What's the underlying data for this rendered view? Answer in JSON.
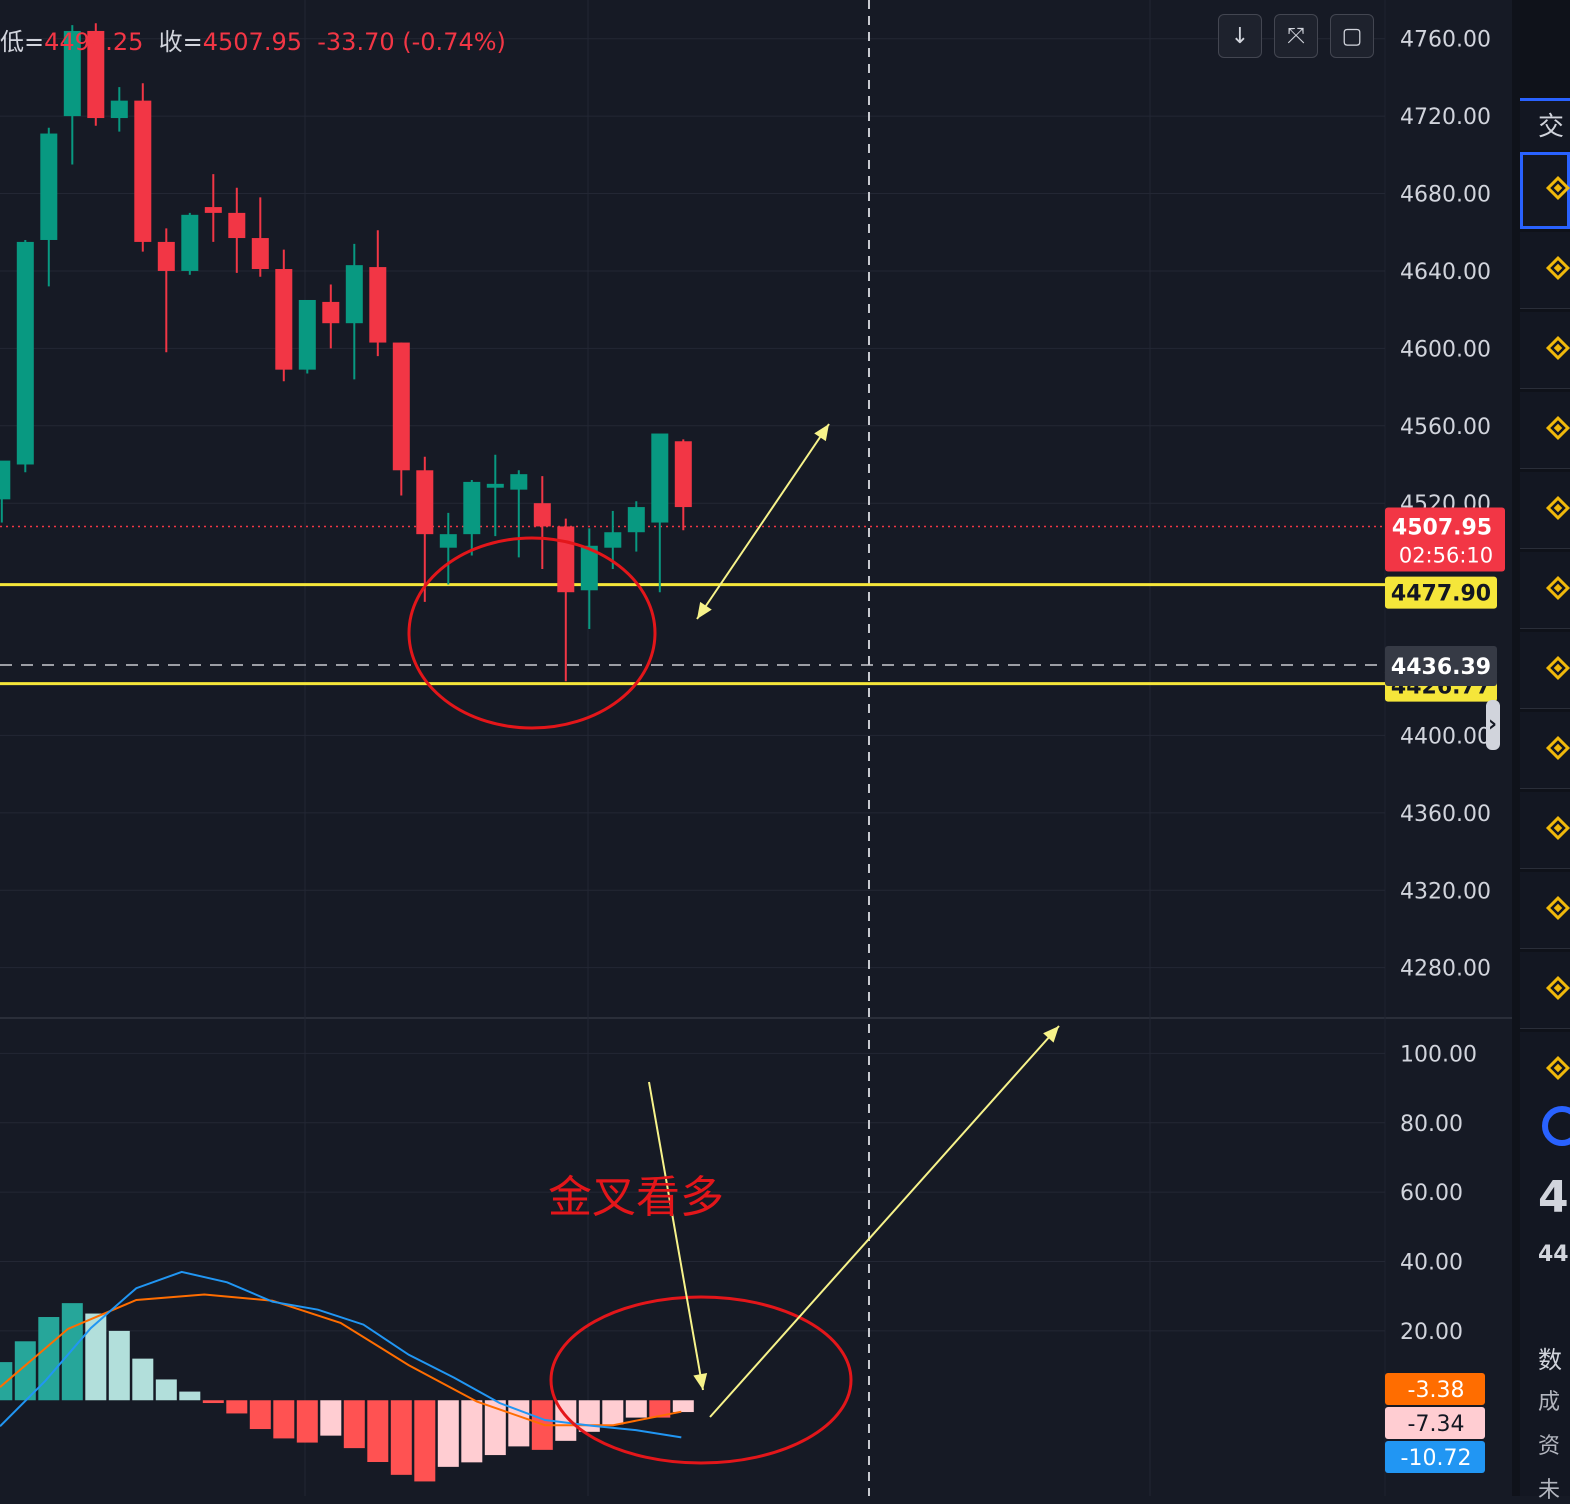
{
  "ohlc_header": {
    "low_label": "低=",
    "low_value": "4494.25",
    "close_label": "收=",
    "close_value": "4507.95",
    "change": "-33.70",
    "change_pct": "(-0.74%)"
  },
  "colors": {
    "background": "#161a25",
    "up": "#089981",
    "down": "#f23645",
    "support_line": "#f5e63a",
    "annotation_red": "#e3161a",
    "annotation_yellow": "#f7f38a",
    "macd_line": "#2196f3",
    "signal_line": "#ff6d00",
    "hist_up_strong": "#26a69a",
    "hist_up_weak": "#b2dfdb",
    "hist_down_strong": "#ff5252",
    "hist_down_weak": "#ffcdd2"
  },
  "toolbar": [
    {
      "name": "download-icon",
      "glyph": "↓"
    },
    {
      "name": "collapse-icon",
      "glyph": "⤧"
    },
    {
      "name": "fullscreen-icon",
      "glyph": "▢"
    }
  ],
  "chart_data": [
    {
      "type": "candlestick",
      "y_ticks": [
        "4760.00",
        "4720.00",
        "4680.00",
        "4640.00",
        "4600.00",
        "4560.00",
        "4520.00",
        "4400.00",
        "4360.00",
        "4320.00",
        "4280.00"
      ],
      "ylim": [
        4254,
        4780
      ],
      "grid": true,
      "candles": [
        {
          "o": 4522,
          "h": 4540,
          "l": 4510,
          "c": 4542
        },
        {
          "o": 4540,
          "h": 4656,
          "l": 4536,
          "c": 4655
        },
        {
          "o": 4656,
          "h": 4714,
          "l": 4632,
          "c": 4711
        },
        {
          "o": 4720,
          "h": 4767,
          "l": 4695,
          "c": 4764
        },
        {
          "o": 4764,
          "h": 4768,
          "l": 4715,
          "c": 4719
        },
        {
          "o": 4719,
          "h": 4735,
          "l": 4712,
          "c": 4728
        },
        {
          "o": 4728,
          "h": 4737,
          "l": 4650,
          "c": 4655
        },
        {
          "o": 4655,
          "h": 4662,
          "l": 4598,
          "c": 4640
        },
        {
          "o": 4640,
          "h": 4670,
          "l": 4638,
          "c": 4669
        },
        {
          "o": 4673,
          "h": 4690,
          "l": 4655,
          "c": 4670
        },
        {
          "o": 4670,
          "h": 4683,
          "l": 4639,
          "c": 4657
        },
        {
          "o": 4657,
          "h": 4678,
          "l": 4637,
          "c": 4641
        },
        {
          "o": 4641,
          "h": 4651,
          "l": 4583,
          "c": 4589
        },
        {
          "o": 4589,
          "h": 4625,
          "l": 4587,
          "c": 4625
        },
        {
          "o": 4624,
          "h": 4633,
          "l": 4600,
          "c": 4613
        },
        {
          "o": 4613,
          "h": 4654,
          "l": 4584,
          "c": 4643
        },
        {
          "o": 4642,
          "h": 4661,
          "l": 4596,
          "c": 4603
        },
        {
          "o": 4603,
          "h": 4603,
          "l": 4524,
          "c": 4537
        },
        {
          "o": 4537,
          "h": 4544,
          "l": 4469,
          "c": 4504
        },
        {
          "o": 4497,
          "h": 4515,
          "l": 4478,
          "c": 4504
        },
        {
          "o": 4504,
          "h": 4532,
          "l": 4493,
          "c": 4531
        },
        {
          "o": 4528,
          "h": 4545,
          "l": 4503,
          "c": 4530
        },
        {
          "o": 4527,
          "h": 4537,
          "l": 4492,
          "c": 4535
        },
        {
          "o": 4520,
          "h": 4534,
          "l": 4486,
          "c": 4508
        },
        {
          "o": 4508,
          "h": 4512,
          "l": 4428,
          "c": 4474
        },
        {
          "o": 4475,
          "h": 4507,
          "l": 4455,
          "c": 4498
        },
        {
          "o": 4497,
          "h": 4516,
          "l": 4486,
          "c": 4505
        },
        {
          "o": 4505,
          "h": 4521,
          "l": 4495,
          "c": 4518
        },
        {
          "o": 4510,
          "h": 4555,
          "l": 4474,
          "c": 4556
        },
        {
          "o": 4552,
          "h": 4553,
          "l": 4506,
          "c": 4518
        }
      ],
      "last_price": {
        "value": "4507.95",
        "countdown": "02:56:10"
      },
      "support_lines": [
        "4477.90",
        "4426.77"
      ],
      "crosshair_price": "4436.39"
    },
    {
      "type": "macd",
      "y_ticks": [
        "100.00",
        "80.00",
        "60.00",
        "40.00",
        "20.00"
      ],
      "ylim": [
        -27.6,
        110.2
      ],
      "histogram": [
        11,
        17,
        24,
        28,
        25,
        20,
        12,
        6,
        2.5,
        -0.8,
        -3.8,
        -8.3,
        -11,
        -12.2,
        -10.2,
        -13.8,
        -17.8,
        -21.5,
        -23.4,
        -19.2,
        -17.9,
        -15.8,
        -13.3,
        -14.3,
        -11.7,
        -9.1,
        -7,
        -5,
        -5,
        -3.4
      ],
      "macd_line": [
        -7.5,
        5.6,
        20.8,
        32.3,
        37,
        34,
        28.4,
        26.1,
        21.8,
        13.1,
        6.5,
        -0.8,
        -5.7,
        -7.3,
        -8.6,
        -10.7
      ],
      "signal_line": [
        3.8,
        20.6,
        28.9,
        30.5,
        28.7,
        22.3,
        10.1,
        -0.4,
        -7.2,
        -7.2,
        -3.3
      ],
      "last_values": [
        "-3.38",
        "-7.34",
        "-10.72"
      ]
    }
  ],
  "annotations": {
    "text": "金叉看多"
  },
  "sidebar": {
    "tab_label": "交",
    "row_count": 12,
    "lower_big": "4",
    "lower_small": "44",
    "lower_labels": [
      "数",
      "成",
      "资",
      "未"
    ]
  }
}
